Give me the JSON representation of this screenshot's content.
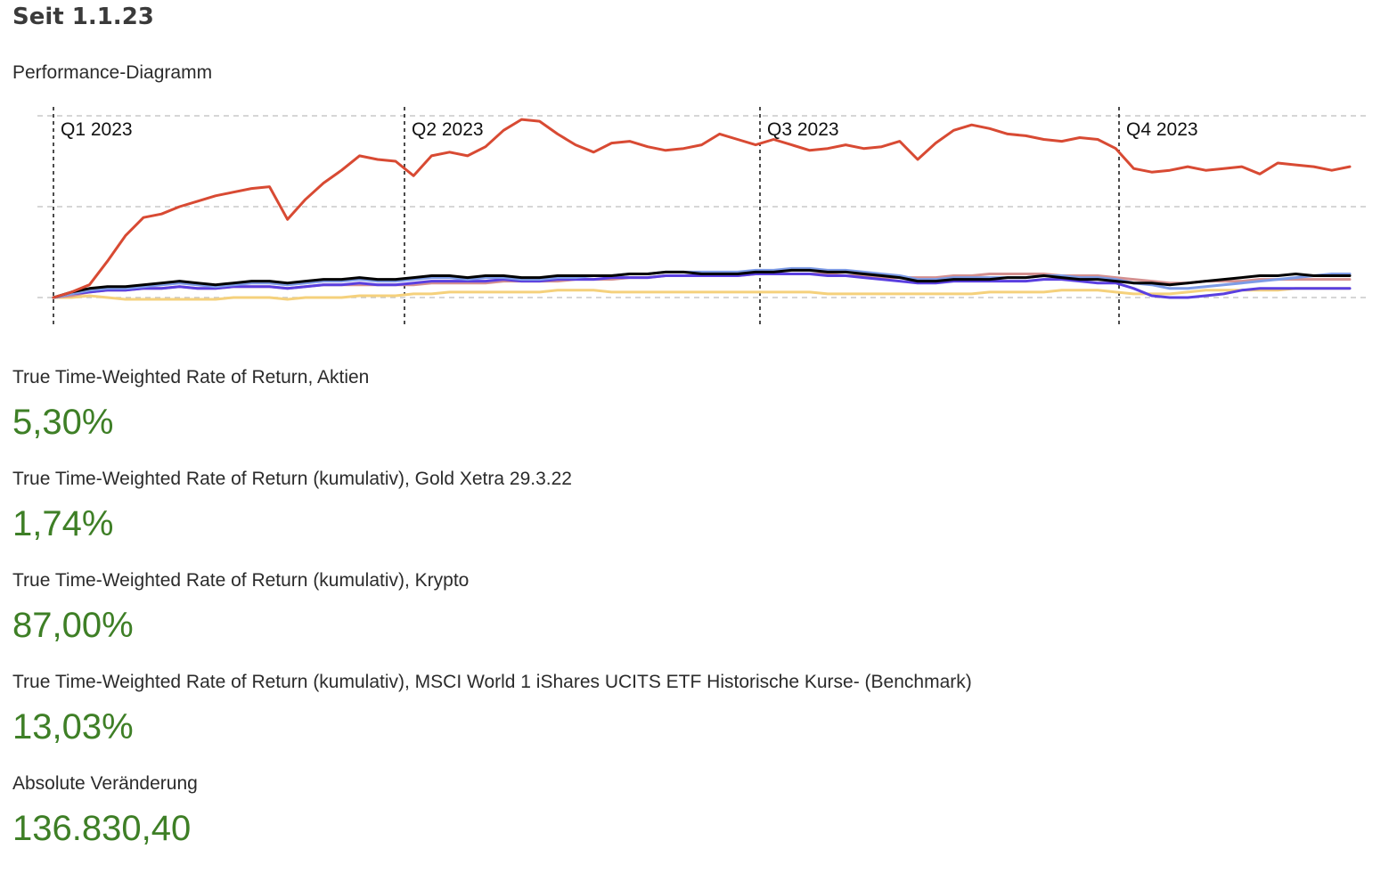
{
  "header": {
    "title": "Seit 1.1.23",
    "subtitle": "Performance-Diagramm"
  },
  "colors": {
    "positive": "#3e7f26",
    "grid": "#c8c8c8",
    "divider": "#111111"
  },
  "chart_data": {
    "type": "line",
    "quarters": [
      "Q1 2023",
      "Q2 2023",
      "Q3 2023",
      "Q4 2023"
    ],
    "x": [
      0,
      5,
      10,
      15,
      20,
      25,
      30,
      35,
      40,
      45,
      50,
      55,
      60,
      65,
      70,
      75,
      80,
      85,
      90,
      95,
      100,
      105,
      110,
      115,
      120,
      125,
      130,
      135,
      140,
      145,
      150,
      155,
      160,
      165,
      170,
      175,
      180,
      185,
      190,
      195,
      200,
      205,
      210,
      215,
      220,
      225,
      230,
      235,
      240,
      245,
      250,
      255,
      260,
      265,
      270,
      275,
      280,
      285,
      290,
      295,
      300,
      305,
      310,
      315,
      320,
      325,
      330,
      335,
      340,
      345,
      350,
      355,
      360
    ],
    "ylim": [
      0,
      100
    ],
    "grid": "horizontal-dashed",
    "series": [
      {
        "color": "#d84a33",
        "values": [
          0,
          3,
          7,
          20,
          34,
          44,
          46,
          50,
          53,
          56,
          58,
          60,
          61,
          43,
          54,
          63,
          70,
          78,
          76,
          75,
          67,
          78,
          80,
          78,
          83,
          92,
          98,
          97,
          90,
          84,
          80,
          85,
          86,
          83,
          81,
          82,
          84,
          90,
          87,
          84,
          87,
          84,
          81,
          82,
          84,
          82,
          83,
          86,
          76,
          85,
          92,
          95,
          93,
          90,
          89,
          87,
          86,
          88,
          87,
          82,
          71,
          69,
          70,
          72,
          70,
          71,
          72,
          68,
          74,
          73,
          72,
          70,
          72
        ]
      },
      {
        "color": "#000000",
        "values": [
          0,
          3,
          5,
          6,
          6,
          7,
          8,
          9,
          8,
          7,
          8,
          9,
          9,
          8,
          9,
          10,
          10,
          11,
          10,
          10,
          11,
          12,
          12,
          11,
          12,
          12,
          11,
          11,
          12,
          12,
          12,
          12,
          13,
          13,
          14,
          14,
          13,
          13,
          13,
          14,
          14,
          15,
          15,
          14,
          14,
          13,
          12,
          11,
          9,
          9,
          10,
          10,
          10,
          11,
          11,
          12,
          11,
          10,
          10,
          9,
          8,
          8,
          7,
          8,
          9,
          10,
          11,
          12,
          12,
          13,
          12,
          12,
          12
        ]
      },
      {
        "color": "#7d9be6",
        "values": [
          0,
          2,
          4,
          5,
          5,
          6,
          7,
          8,
          7,
          6,
          7,
          8,
          8,
          7,
          8,
          9,
          9,
          10,
          9,
          9,
          10,
          11,
          11,
          10,
          11,
          11,
          10,
          10,
          11,
          11,
          12,
          12,
          13,
          13,
          14,
          14,
          14,
          14,
          14,
          15,
          15,
          16,
          16,
          15,
          15,
          14,
          13,
          12,
          10,
          10,
          11,
          11,
          11,
          11,
          11,
          12,
          12,
          11,
          11,
          10,
          8,
          7,
          5,
          5,
          6,
          7,
          8,
          9,
          10,
          11,
          12,
          13,
          13
        ]
      },
      {
        "color": "#5a3fe0",
        "values": [
          0,
          2,
          3,
          4,
          4,
          5,
          5,
          6,
          5,
          5,
          6,
          6,
          6,
          5,
          6,
          7,
          7,
          8,
          7,
          7,
          8,
          9,
          9,
          9,
          9,
          10,
          9,
          9,
          10,
          10,
          10,
          11,
          11,
          11,
          12,
          12,
          12,
          12,
          12,
          13,
          13,
          13,
          13,
          12,
          12,
          11,
          10,
          9,
          8,
          8,
          9,
          9,
          9,
          9,
          9,
          10,
          10,
          9,
          8,
          8,
          5,
          1,
          0,
          0,
          1,
          2,
          4,
          5,
          5,
          5,
          5,
          5,
          5
        ]
      },
      {
        "color": "#d49090",
        "values": [
          0,
          1,
          3,
          4,
          4,
          5,
          5,
          6,
          5,
          5,
          6,
          6,
          6,
          5,
          6,
          7,
          7,
          7,
          7,
          7,
          7,
          8,
          8,
          8,
          8,
          9,
          9,
          9,
          9,
          10,
          10,
          10,
          11,
          11,
          12,
          12,
          12,
          12,
          12,
          13,
          13,
          13,
          13,
          13,
          12,
          12,
          11,
          11,
          11,
          11,
          12,
          12,
          13,
          13,
          13,
          13,
          12,
          12,
          12,
          11,
          10,
          9,
          8,
          8,
          9,
          9,
          9,
          10,
          10,
          10,
          10,
          10,
          10
        ]
      },
      {
        "color": "#f5d17c",
        "values": [
          0,
          0,
          1,
          0,
          -1,
          -1,
          -1,
          -1,
          -1,
          -1,
          0,
          0,
          0,
          -1,
          0,
          0,
          0,
          1,
          1,
          1,
          2,
          2,
          3,
          3,
          3,
          3,
          3,
          3,
          4,
          4,
          4,
          3,
          3,
          3,
          3,
          3,
          3,
          3,
          3,
          3,
          3,
          3,
          3,
          2,
          2,
          2,
          2,
          2,
          2,
          2,
          2,
          2,
          3,
          3,
          3,
          3,
          4,
          4,
          4,
          3,
          2,
          2,
          2,
          3,
          4,
          4,
          4,
          4,
          4,
          5,
          5,
          5,
          5
        ]
      }
    ]
  },
  "metrics": [
    {
      "label": "True Time-Weighted Rate of Return, Aktien",
      "value": "5,30%"
    },
    {
      "label": "True Time-Weighted Rate of Return (kumulativ), Gold Xetra 29.3.22",
      "value": "1,74%"
    },
    {
      "label": "True Time-Weighted Rate of Return (kumulativ), Krypto",
      "value": "87,00%"
    },
    {
      "label": "True Time-Weighted Rate of Return (kumulativ), MSCI World 1  iShares UCITS ETF Historische Kurse- (Benchmark)",
      "value": "13,03%"
    },
    {
      "label": "Absolute Veränderung",
      "value": "136.830,40"
    }
  ]
}
